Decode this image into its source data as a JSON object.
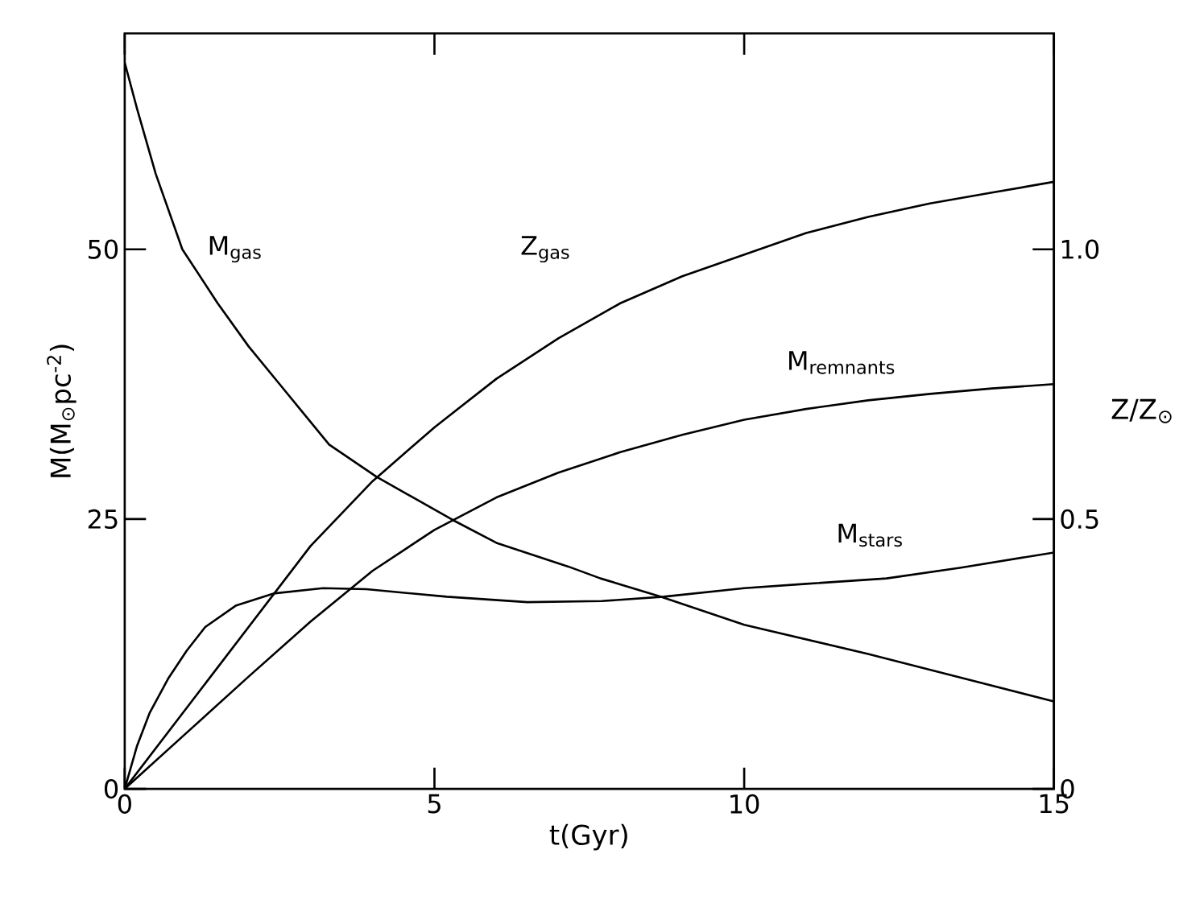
{
  "chart_data": {
    "type": "line",
    "xlabel": "t(Gyr)",
    "ylabel": "M(M$_{⊙}$pc$^{-2}$)",
    "y2label": "Z/Z$_{⊙}$",
    "xlim": [
      0,
      15
    ],
    "xticks": [
      0,
      5,
      10,
      15
    ],
    "ylim": [
      0,
      70
    ],
    "yticks": [
      0,
      25,
      50
    ],
    "y2lim": [
      0,
      1.4
    ],
    "y2ticks": [
      0,
      0.5,
      {
        "value": 1.0,
        "label": "1.0"
      }
    ],
    "line_style": "solid",
    "marker": "none",
    "grid": false,
    "legend": false,
    "series": [
      {
        "name": "M$_{gas}$",
        "color": "#000000",
        "x": [
          0,
          0.2,
          0.5,
          0.93,
          1.5,
          2,
          2.5,
          3.3,
          4.07,
          5.3,
          6,
          7.16,
          7.68,
          8.66,
          10,
          12,
          13.5,
          15
        ],
        "values": [
          67.3,
          63,
          57,
          50,
          45,
          41,
          37.5,
          31.9,
          28.9,
          24.9,
          22.8,
          20.6,
          19.5,
          17.8,
          15.2,
          12.5,
          10.3,
          8.1
        ]
      },
      {
        "name": "Z$_{gas}$",
        "color": "#000000",
        "axis": "y2",
        "x": [
          0,
          1,
          2,
          3,
          4,
          5,
          6,
          7,
          8,
          9,
          10,
          11,
          12,
          13,
          14,
          15
        ],
        "values": [
          0,
          0.15,
          0.3,
          0.45,
          0.57,
          0.67,
          0.76,
          0.835,
          0.9,
          0.95,
          0.99,
          1.03,
          1.06,
          1.085,
          1.105,
          1.125
        ]
      },
      {
        "name": "M$_{remnants}$",
        "color": "#000000",
        "x": [
          0,
          1,
          2,
          3,
          4,
          5,
          6,
          7,
          8,
          9,
          10,
          11,
          12,
          13,
          14,
          15
        ],
        "values": [
          0,
          5.2,
          10.4,
          15.5,
          20.2,
          24,
          27,
          29.3,
          31.2,
          32.8,
          34.2,
          35.2,
          36,
          36.6,
          37.1,
          37.5
        ]
      },
      {
        "name": "M$_{stars}$",
        "color": "#000000",
        "x": [
          0,
          0.2,
          0.4,
          0.7,
          1,
          1.3,
          1.8,
          2.4,
          3.2,
          3.9,
          5.2,
          6.5,
          7.7,
          8.7,
          10,
          11,
          12.3,
          13.5,
          15
        ],
        "values": [
          0,
          4,
          7,
          10.2,
          12.8,
          15,
          17,
          18.1,
          18.6,
          18.5,
          17.8,
          17.3,
          17.4,
          17.8,
          18.6,
          19,
          19.5,
          20.5,
          21.9
        ]
      }
    ]
  }
}
